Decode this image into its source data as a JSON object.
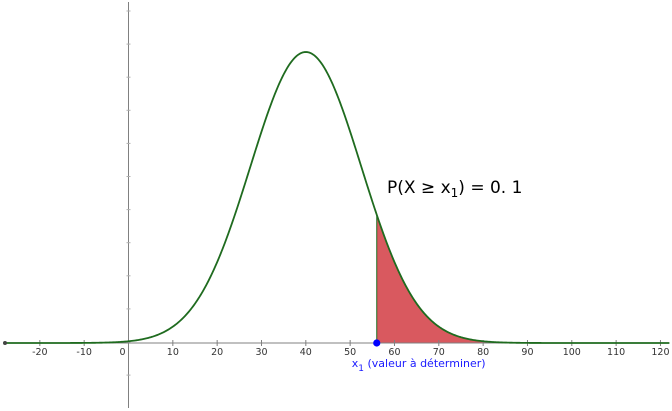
{
  "chart_data": {
    "type": "area",
    "distribution": "normal",
    "mean": 40,
    "sd": 12.5,
    "xlim": [
      -28,
      122
    ],
    "x_ticks": [
      -20,
      -10,
      0,
      10,
      20,
      30,
      40,
      50,
      60,
      70,
      80,
      90,
      100,
      110,
      120
    ],
    "x_tick_labels": [
      "-20",
      "-10",
      "0",
      "10",
      "20",
      "30",
      "40",
      "50",
      "60",
      "70",
      "80",
      "90",
      "100",
      "110",
      "120"
    ],
    "shaded_from": 56,
    "shaded_to": 122,
    "point_x": 56,
    "point_label": {
      "main": "x",
      "sub": "1",
      "rest": " (valeur à déterminer)"
    },
    "annotation": {
      "prefix": "P(X ≥ x",
      "sub": "1",
      "suffix": ") = 0. 1"
    },
    "grid": false,
    "colors": {
      "curve": "#1f6b1f",
      "fill": "#d9595f",
      "axis": "#808080",
      "point": "#0000ff",
      "label": "#1a1aff"
    }
  }
}
